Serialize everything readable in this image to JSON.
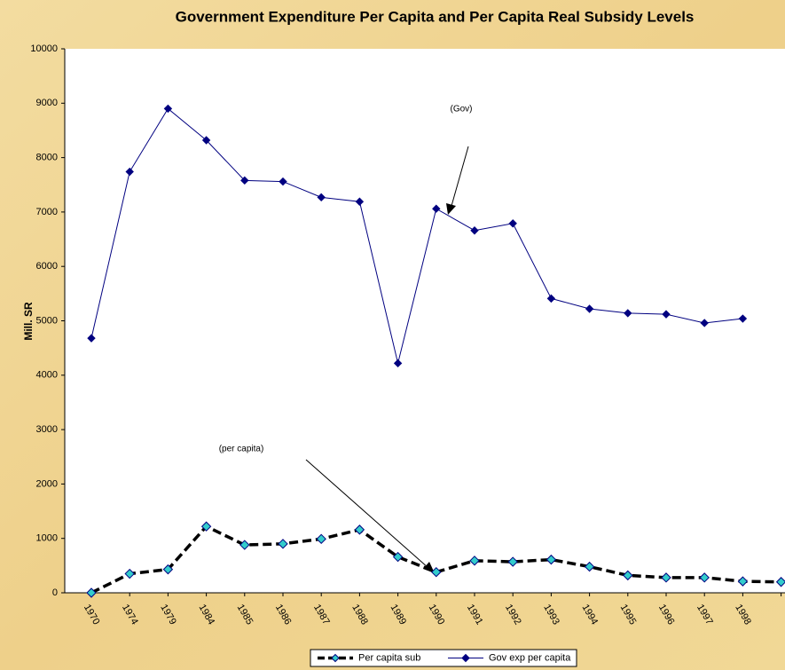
{
  "chart_data": {
    "type": "line",
    "title": "Government Expenditure Per Capita and Per Capita Real Subsidy Levels",
    "y_label": "Mill. SR",
    "categories": [
      "1970",
      "1974",
      "1979",
      "1984",
      "1985",
      "1986",
      "1987",
      "1988",
      "1989",
      "1990",
      "1991",
      "1992",
      "1993",
      "1994",
      "1995",
      "1996",
      "1997",
      "1998",
      null
    ],
    "series": [
      {
        "name": "Per capita sub",
        "color": "#000000",
        "marker_color": "#33cccc",
        "values": [
          0,
          350,
          430,
          1220,
          880,
          900,
          990,
          1160,
          660,
          380,
          590,
          570,
          610,
          480,
          320,
          280,
          280,
          210,
          200
        ]
      },
      {
        "name": "Gov exp per capita",
        "color": "#000080",
        "marker_color": "#000080",
        "values": [
          4680,
          7740,
          8900,
          8320,
          7580,
          7560,
          7270,
          7190,
          4220,
          7060,
          6660,
          6790,
          5410,
          5220,
          5140,
          5120,
          4960,
          5040,
          null
        ]
      }
    ],
    "annotations": [
      "(Gov)",
      "(per capita)"
    ],
    "ylim": [
      0,
      10000
    ],
    "yticks": [
      0,
      1000,
      2000,
      3000,
      4000,
      5000,
      6000,
      7000,
      8000,
      9000,
      10000
    ],
    "legend": "bottom"
  }
}
